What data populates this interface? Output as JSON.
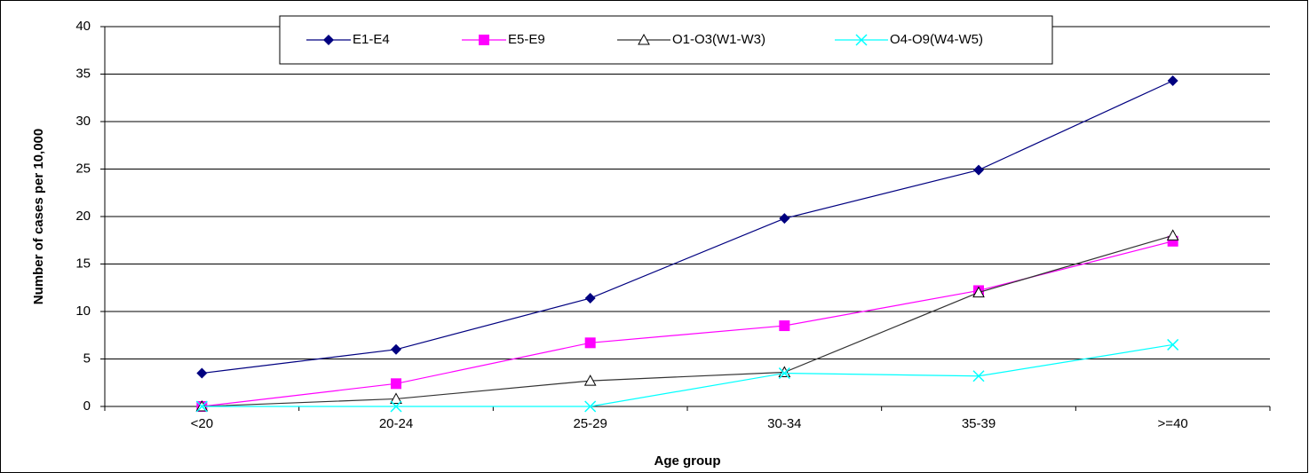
{
  "chart_data": {
    "type": "line",
    "x_label": "Age group",
    "y_label": "Number of cases per 10,000",
    "categories": [
      "<20",
      "20-24",
      "25-29",
      "30-34",
      "35-39",
      ">=40"
    ],
    "series": [
      {
        "name": "E1-E4",
        "color": "#000080",
        "marker": "diamond",
        "values": [
          3.5,
          6.0,
          11.4,
          19.8,
          24.9,
          34.3
        ]
      },
      {
        "name": "E5-E9",
        "color": "#ff00ff",
        "marker": "square",
        "values": [
          0,
          2.4,
          6.7,
          8.5,
          12.2,
          17.4
        ]
      },
      {
        "name": "O1-O3(W1-W3)",
        "color": "#333333",
        "marker": "triangle",
        "values": [
          0,
          0.8,
          2.7,
          3.6,
          12.0,
          18.0
        ]
      },
      {
        "name": "O4-O9(W4-W5)",
        "color": "#00ffff",
        "marker": "x",
        "values": [
          0,
          0,
          0,
          3.5,
          3.2,
          6.5
        ]
      }
    ],
    "ylim": [
      0,
      40
    ],
    "yticks": [
      0,
      5,
      10,
      15,
      20,
      25,
      30,
      35,
      40
    ],
    "grid": true,
    "legend": "top"
  }
}
